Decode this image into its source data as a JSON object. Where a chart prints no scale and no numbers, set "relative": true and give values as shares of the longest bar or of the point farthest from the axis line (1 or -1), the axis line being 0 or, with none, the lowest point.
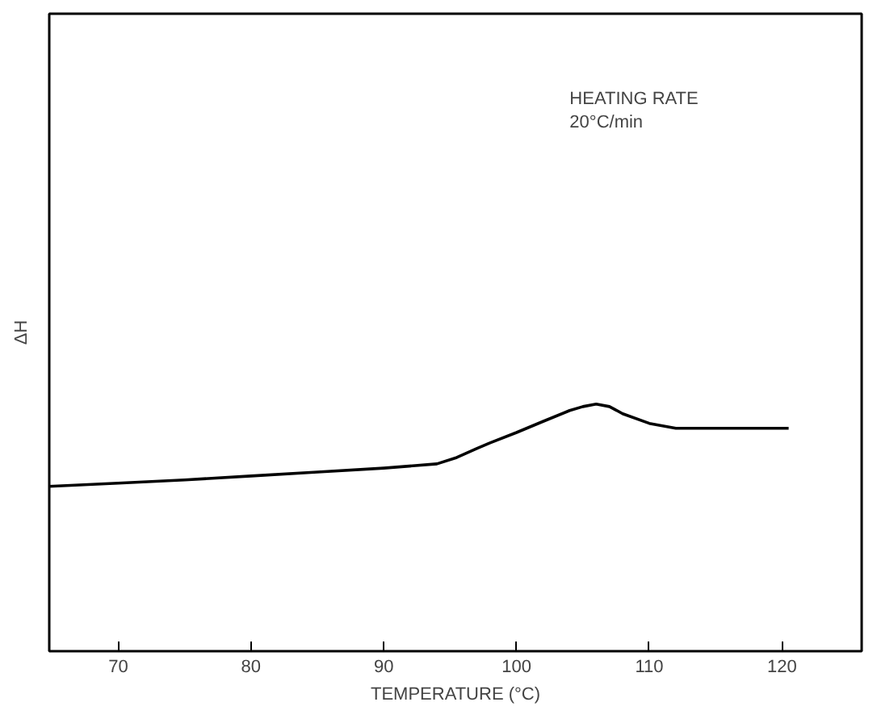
{
  "chart_data": {
    "type": "line",
    "xlabel": "TEMPERATURE (°C)",
    "ylabel": "ΔH",
    "annotations": [
      "HEATING RATE\n20°C/min"
    ],
    "relative": true,
    "xlim": [
      64.8,
      126
    ],
    "xticks": [
      70,
      80,
      90,
      100,
      110,
      120
    ],
    "grid": false,
    "marker": "none",
    "line_style": "solid",
    "series": [
      {
        "color": "#000000",
        "x": [
          64.8,
          70,
          75,
          80,
          85,
          90,
          94,
          95.5,
          97,
          98,
          100,
          102,
          104,
          105,
          106,
          107,
          108,
          110,
          112,
          115,
          120.5
        ],
        "values": [
          0.667,
          0.68,
          0.693,
          0.709,
          0.725,
          0.741,
          0.758,
          0.784,
          0.82,
          0.843,
          0.885,
          0.93,
          0.974,
          0.99,
          1.0,
          0.99,
          0.961,
          0.922,
          0.902,
          0.902,
          0.902
        ]
      }
    ]
  }
}
